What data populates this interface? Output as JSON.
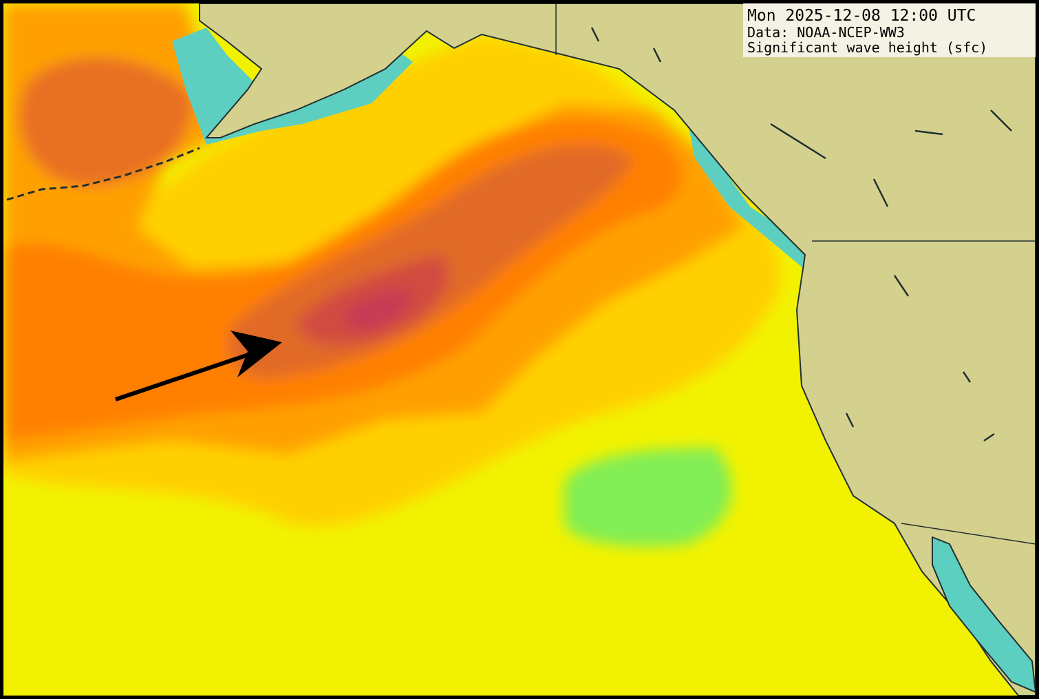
{
  "info_box": {
    "time": "Mon 2025-12-08 12:00 UTC",
    "source": "Data: NOAA-NCEP-WW3",
    "field": "Significant wave height (sfc)"
  }
}
